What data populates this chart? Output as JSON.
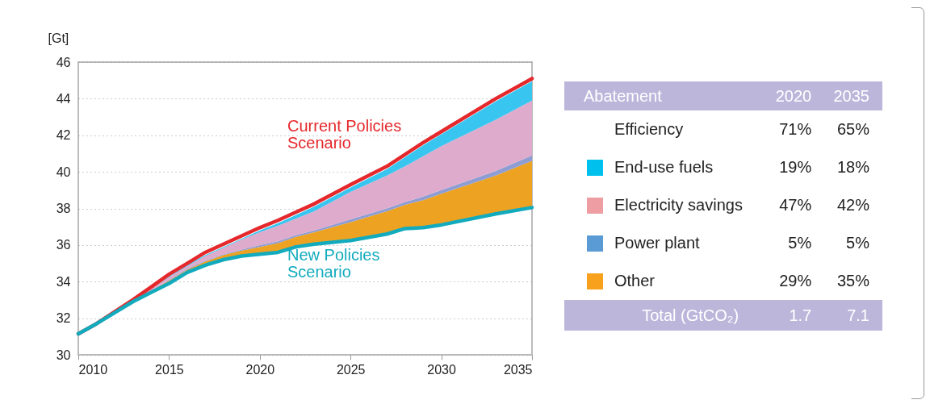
{
  "chart_data": [
    {
      "type": "area",
      "ylabel": "[Gt]",
      "grid": "y",
      "x": [
        2010,
        2011,
        2012,
        2013,
        2014,
        2015,
        2016,
        2017,
        2018,
        2019,
        2020,
        2021,
        2022,
        2023,
        2025,
        2027,
        2028,
        2029,
        2030,
        2033,
        2035
      ],
      "xlim": [
        2010,
        2035
      ],
      "xticks": [
        2010,
        2015,
        2020,
        2025,
        2030,
        2035
      ],
      "ylim": [
        30,
        46
      ],
      "yticks": [
        30,
        32,
        34,
        36,
        38,
        40,
        42,
        44,
        46
      ],
      "series": [
        {
          "name": "New Policies Scenario",
          "type": "line",
          "color": "#12abbe",
          "values": [
            31.15,
            31.7,
            32.3,
            32.9,
            33.4,
            33.9,
            34.5,
            34.9,
            35.2,
            35.4,
            35.5,
            35.6,
            35.9,
            36.05,
            36.25,
            36.6,
            36.9,
            36.95,
            37.1,
            37.7,
            38.05
          ]
        },
        {
          "color": "#eea221",
          "values": [
            31.15,
            31.7,
            32.3,
            32.95,
            33.5,
            34.05,
            34.65,
            35.1,
            35.45,
            35.7,
            35.9,
            36.1,
            36.45,
            36.7,
            37.25,
            37.85,
            38.2,
            38.45,
            38.8,
            39.8,
            40.6
          ]
        },
        {
          "color": "#8e9dd2",
          "values": [
            31.15,
            31.7,
            32.3,
            32.95,
            33.5,
            34.1,
            34.7,
            35.15,
            35.5,
            35.75,
            36.0,
            36.2,
            36.55,
            36.8,
            37.4,
            38.0,
            38.35,
            38.65,
            39.0,
            40.05,
            40.9
          ]
        },
        {
          "color": "#dfabcd",
          "values": [
            31.15,
            31.7,
            32.35,
            33.0,
            33.6,
            34.25,
            34.85,
            35.4,
            35.85,
            36.3,
            36.7,
            37.05,
            37.45,
            37.85,
            38.9,
            39.8,
            40.3,
            40.85,
            41.4,
            42.85,
            43.9
          ]
        },
        {
          "color": "#38c5f0",
          "values": [
            31.15,
            31.7,
            32.35,
            33.0,
            33.6,
            34.3,
            34.9,
            35.45,
            35.9,
            36.35,
            36.8,
            37.2,
            37.65,
            38.1,
            39.15,
            40.15,
            40.8,
            41.45,
            42.05,
            43.85,
            44.95
          ]
        },
        {
          "name": "Current Policies Scenario",
          "type": "line",
          "color": "#e5282b",
          "values": [
            31.15,
            31.7,
            32.35,
            33.0,
            33.7,
            34.4,
            35.0,
            35.6,
            36.05,
            36.5,
            36.95,
            37.35,
            37.8,
            38.25,
            39.3,
            40.3,
            40.95,
            41.6,
            42.2,
            44.0,
            45.1
          ]
        }
      ]
    },
    {
      "type": "other",
      "title": "Abatement",
      "categories": [
        "Efficiency",
        "End-use fuels",
        "Electricity savings",
        "Power plant",
        "Other",
        "Total (GtCO₂)"
      ],
      "colors": [
        null,
        "#00c0ee",
        "#ee9ea3",
        "#5b9bd5",
        "#f7a11d",
        null
      ],
      "series": [
        {
          "name": "2020",
          "values": [
            71,
            19,
            47,
            5,
            29,
            1.7
          ],
          "value_labels": [
            "71%",
            "19%",
            "47%",
            "5%",
            "29%",
            "1.7"
          ]
        },
        {
          "name": "2035",
          "values": [
            65,
            18,
            42,
            5,
            35,
            7.1
          ],
          "value_labels": [
            "65%",
            "18%",
            "42%",
            "5%",
            "35%",
            "7.1"
          ]
        }
      ]
    }
  ]
}
